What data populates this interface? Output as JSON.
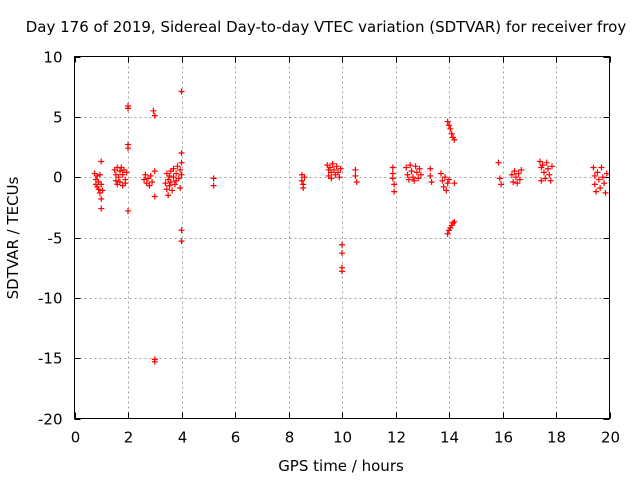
{
  "chart_data": {
    "type": "scatter",
    "title": "Day 176 of 2019, Sidereal Day-to-day VTEC variation (SDTVAR) for receiver froy",
    "xlabel": "GPS time / hours",
    "ylabel": "SDTVAR / TECUs",
    "xlim": [
      0,
      20
    ],
    "ylim": [
      -20,
      10
    ],
    "xticks": [
      "0",
      "2",
      "4",
      "6",
      "8",
      "10",
      "12",
      "14",
      "16",
      "18",
      "20"
    ],
    "yticks": [
      "10",
      "5",
      "0",
      "-5",
      "-10",
      "-15",
      "-20"
    ],
    "grid": true,
    "marker": "+",
    "color": "#ff0000",
    "series": [
      {
        "name": "SDTVAR",
        "points": [
          [
            0.75,
            0.3
          ],
          [
            0.8,
            -0.2
          ],
          [
            0.8,
            -0.6
          ],
          [
            0.85,
            0.1
          ],
          [
            0.85,
            -0.8
          ],
          [
            0.9,
            -0.4
          ],
          [
            0.9,
            -1.0
          ],
          [
            0.95,
            0.2
          ],
          [
            0.95,
            -1.3
          ],
          [
            1.0,
            -0.6
          ],
          [
            1.0,
            1.3
          ],
          [
            1.0,
            -1.8
          ],
          [
            1.0,
            -2.6
          ],
          [
            1.05,
            -1.1
          ],
          [
            1.5,
            0.6
          ],
          [
            1.55,
            0.2
          ],
          [
            1.55,
            -0.3
          ],
          [
            1.6,
            0.8
          ],
          [
            1.6,
            -0.6
          ],
          [
            1.65,
            0.0
          ],
          [
            1.7,
            0.5
          ],
          [
            1.7,
            -0.4
          ],
          [
            1.75,
            0.8
          ],
          [
            1.8,
            0.2
          ],
          [
            1.8,
            -0.7
          ],
          [
            1.85,
            0.6
          ],
          [
            1.9,
            -0.2
          ],
          [
            1.9,
            -0.5
          ],
          [
            1.95,
            0.4
          ],
          [
            2.0,
            5.9
          ],
          [
            2.0,
            5.7
          ],
          [
            2.0,
            2.7
          ],
          [
            2.0,
            2.4
          ],
          [
            2.0,
            -2.8
          ],
          [
            2.6,
            -0.2
          ],
          [
            2.65,
            0.2
          ],
          [
            2.7,
            -0.5
          ],
          [
            2.75,
            -0.1
          ],
          [
            2.8,
            -0.7
          ],
          [
            2.85,
            0.1
          ],
          [
            2.9,
            -0.4
          ],
          [
            2.95,
            5.5
          ],
          [
            3.0,
            5.1
          ],
          [
            3.0,
            0.5
          ],
          [
            3.0,
            -1.6
          ],
          [
            3.0,
            -15.1
          ],
          [
            3.0,
            -15.3
          ],
          [
            3.4,
            -0.5
          ],
          [
            3.45,
            0.3
          ],
          [
            3.45,
            -1.0
          ],
          [
            3.5,
            -0.2
          ],
          [
            3.5,
            -1.5
          ],
          [
            3.55,
            0.1
          ],
          [
            3.55,
            -0.7
          ],
          [
            3.6,
            0.5
          ],
          [
            3.6,
            -0.4
          ],
          [
            3.65,
            -1.1
          ],
          [
            3.7,
            0.7
          ],
          [
            3.7,
            0.0
          ],
          [
            3.75,
            -0.6
          ],
          [
            3.8,
            0.3
          ],
          [
            3.8,
            -0.3
          ],
          [
            3.85,
            0.9
          ],
          [
            3.9,
            -0.1
          ],
          [
            3.95,
            0.6
          ],
          [
            3.95,
            -0.9
          ],
          [
            4.0,
            0.2
          ],
          [
            4.0,
            7.1
          ],
          [
            4.0,
            2.0
          ],
          [
            4.0,
            1.2
          ],
          [
            4.0,
            -4.4
          ],
          [
            4.0,
            -5.3
          ],
          [
            5.2,
            -0.1
          ],
          [
            5.2,
            -0.7
          ],
          [
            8.5,
            0.2
          ],
          [
            8.5,
            -0.3
          ],
          [
            8.55,
            -0.6
          ],
          [
            8.55,
            -0.9
          ],
          [
            8.6,
            0.0
          ],
          [
            9.45,
            1.0
          ],
          [
            9.5,
            0.6
          ],
          [
            9.5,
            0.1
          ],
          [
            9.55,
            0.8
          ],
          [
            9.6,
            0.4
          ],
          [
            9.6,
            -0.1
          ],
          [
            9.65,
            1.1
          ],
          [
            9.7,
            0.6
          ],
          [
            9.75,
            0.2
          ],
          [
            9.8,
            0.9
          ],
          [
            9.85,
            0.4
          ],
          [
            9.9,
            0.0
          ],
          [
            9.95,
            0.7
          ],
          [
            10.0,
            -5.6
          ],
          [
            10.0,
            -6.3
          ],
          [
            10.0,
            -7.5
          ],
          [
            10.0,
            -7.8
          ],
          [
            10.5,
            0.6
          ],
          [
            10.5,
            0.1
          ],
          [
            10.55,
            -0.4
          ],
          [
            11.9,
            0.8
          ],
          [
            11.9,
            0.3
          ],
          [
            11.9,
            -0.1
          ],
          [
            11.95,
            -0.6
          ],
          [
            11.95,
            -1.2
          ],
          [
            12.4,
            0.8
          ],
          [
            12.45,
            0.2
          ],
          [
            12.5,
            -0.2
          ],
          [
            12.55,
            1.0
          ],
          [
            12.6,
            0.5
          ],
          [
            12.65,
            0.0
          ],
          [
            12.7,
            -0.3
          ],
          [
            12.75,
            0.9
          ],
          [
            12.8,
            0.4
          ],
          [
            12.85,
            -0.1
          ],
          [
            12.9,
            0.7
          ],
          [
            12.95,
            0.2
          ],
          [
            13.3,
            0.7
          ],
          [
            13.3,
            0.1
          ],
          [
            13.35,
            -0.4
          ],
          [
            13.7,
            0.3
          ],
          [
            13.75,
            -0.3
          ],
          [
            13.8,
            -0.8
          ],
          [
            13.85,
            0.0
          ],
          [
            13.9,
            -1.1
          ],
          [
            13.95,
            -0.5
          ],
          [
            14.0,
            -0.2
          ],
          [
            13.95,
            4.6
          ],
          [
            14.0,
            4.3
          ],
          [
            14.05,
            4.0
          ],
          [
            14.1,
            3.6
          ],
          [
            14.15,
            3.3
          ],
          [
            14.2,
            3.1
          ],
          [
            13.95,
            -4.7
          ],
          [
            14.0,
            -4.4
          ],
          [
            14.05,
            -4.2
          ],
          [
            14.1,
            -4.0
          ],
          [
            14.15,
            -3.8
          ],
          [
            14.2,
            -3.7
          ],
          [
            14.2,
            -0.5
          ],
          [
            15.85,
            1.2
          ],
          [
            15.9,
            -0.1
          ],
          [
            15.95,
            -0.6
          ],
          [
            16.35,
            0.2
          ],
          [
            16.4,
            -0.4
          ],
          [
            16.45,
            0.5
          ],
          [
            16.5,
            0.0
          ],
          [
            16.55,
            -0.5
          ],
          [
            16.6,
            0.3
          ],
          [
            16.65,
            -0.2
          ],
          [
            16.7,
            0.6
          ],
          [
            17.4,
            1.3
          ],
          [
            17.45,
            0.8
          ],
          [
            17.45,
            -0.3
          ],
          [
            17.5,
            1.0
          ],
          [
            17.55,
            0.4
          ],
          [
            17.6,
            -0.1
          ],
          [
            17.65,
            1.2
          ],
          [
            17.7,
            0.7
          ],
          [
            17.75,
            0.2
          ],
          [
            17.8,
            -0.3
          ],
          [
            17.85,
            0.9
          ],
          [
            19.4,
            0.8
          ],
          [
            19.45,
            0.1
          ],
          [
            19.45,
            -0.6
          ],
          [
            19.5,
            -1.2
          ],
          [
            19.55,
            0.4
          ],
          [
            19.6,
            -0.2
          ],
          [
            19.65,
            -0.9
          ],
          [
            19.7,
            0.8
          ],
          [
            19.75,
            0.0
          ],
          [
            19.8,
            -0.5
          ],
          [
            19.85,
            -1.3
          ],
          [
            19.9,
            0.3
          ]
        ]
      }
    ]
  }
}
